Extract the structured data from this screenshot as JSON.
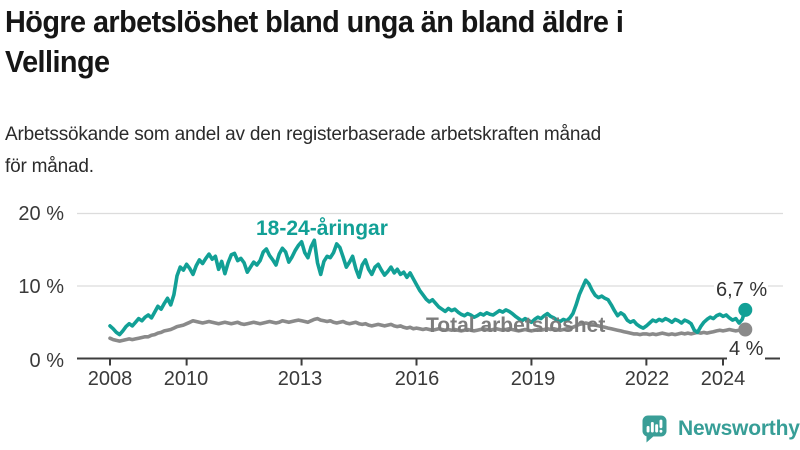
{
  "header": {
    "title_lines": [
      "Högre arbetslöshet bland unga än bland äldre i",
      "Vellinge"
    ],
    "subtitle_lines": [
      "Arbetssökande som andel av den registerbaserade arbetskraften månad",
      "för månad."
    ]
  },
  "chart_data": {
    "type": "line",
    "title": "Högre arbetslöshet bland unga än bland äldre i Vellinge",
    "subtitle": "Arbetssökande som andel av den registerbaserade arbetskraften månad för månad.",
    "unit": "%",
    "frequency": "monthly",
    "x_start": "2008-01",
    "x_end": "2024-08",
    "ylim": [
      0,
      20
    ],
    "grid": "horizontal",
    "y_gridlines": [
      10,
      20
    ],
    "y_tick_labels": [
      "20 %",
      "10 %",
      "0 %"
    ],
    "x_ticks": [
      2008,
      2010,
      2013,
      2016,
      2019,
      2022,
      2024
    ],
    "x_tick_labels": [
      "2008",
      "2010",
      "2013",
      "2016",
      "2019",
      "2022",
      "2024"
    ],
    "legend_position": "inline-labels",
    "series": [
      {
        "name": "18-24-åringar",
        "color": "#12A096",
        "end_label": "6,7 %",
        "end_value": 6.7,
        "values": [
          4.5,
          4.1,
          3.6,
          3.3,
          3.8,
          4.4,
          4.8,
          4.5,
          5.0,
          5.5,
          5.2,
          5.7,
          6.0,
          5.6,
          6.4,
          7.2,
          6.8,
          7.6,
          8.3,
          7.4,
          8.8,
          11.4,
          12.6,
          12.2,
          13.0,
          12.4,
          11.6,
          12.8,
          13.6,
          13.1,
          13.8,
          14.4,
          13.7,
          14.1,
          12.3,
          13.4,
          11.7,
          13.2,
          14.3,
          14.5,
          13.5,
          13.8,
          13.2,
          11.9,
          12.6,
          13.3,
          12.9,
          13.5,
          14.7,
          15.1,
          14.2,
          13.6,
          12.9,
          14.4,
          15.2,
          14.7,
          13.3,
          14.0,
          14.9,
          15.6,
          16.1,
          14.6,
          13.9,
          15.4,
          16.3,
          13.2,
          11.6,
          13.4,
          14.1,
          13.9,
          14.6,
          15.8,
          15.3,
          14.0,
          12.6,
          13.3,
          14.1,
          12.4,
          11.2,
          12.9,
          13.6,
          12.3,
          11.6,
          12.6,
          13.0,
          12.2,
          11.5,
          12.0,
          12.6,
          11.8,
          12.3,
          11.6,
          11.9,
          11.2,
          11.8,
          11.0,
          10.2,
          9.4,
          8.8,
          8.2,
          7.8,
          8.1,
          7.6,
          7.1,
          6.8,
          6.5,
          6.9,
          6.6,
          6.8,
          6.4,
          6.1,
          5.9,
          6.2,
          6.0,
          5.7,
          5.9,
          6.2,
          6.0,
          6.3,
          6.1,
          6.0,
          6.3,
          6.6,
          6.4,
          6.7,
          6.5,
          6.2,
          5.8,
          5.5,
          5.2,
          5.5,
          5.3,
          5.0,
          5.4,
          5.7,
          5.5,
          5.9,
          6.2,
          5.8,
          5.6,
          5.3,
          5.1,
          5.4,
          5.2,
          5.6,
          6.2,
          7.4,
          8.8,
          9.8,
          10.8,
          10.3,
          9.4,
          8.7,
          8.4,
          8.6,
          8.3,
          8.1,
          7.4,
          6.6,
          5.9,
          6.3,
          6.0,
          5.3,
          5.0,
          5.2,
          4.7,
          4.4,
          4.2,
          4.5,
          4.9,
          5.3,
          5.1,
          5.4,
          5.2,
          5.5,
          5.3,
          5.0,
          5.4,
          5.2,
          4.9,
          5.3,
          5.1,
          4.8,
          3.9,
          3.6,
          4.4,
          5.0,
          5.4,
          5.7,
          5.5,
          5.9,
          6.1,
          5.8,
          6.0,
          5.6,
          5.3,
          5.5,
          4.9,
          5.4,
          6.7
        ]
      },
      {
        "name": "Total arbetslöshet",
        "color": "#8A8A8A",
        "end_label": "4 %",
        "end_value": 4.0,
        "values": [
          2.8,
          2.6,
          2.5,
          2.4,
          2.5,
          2.6,
          2.7,
          2.6,
          2.7,
          2.8,
          2.9,
          3.0,
          3.0,
          3.2,
          3.3,
          3.5,
          3.6,
          3.8,
          3.9,
          4.0,
          4.2,
          4.4,
          4.5,
          4.6,
          4.8,
          5.0,
          5.2,
          5.1,
          5.0,
          4.9,
          5.0,
          5.1,
          5.0,
          4.9,
          4.8,
          4.9,
          5.0,
          4.9,
          4.8,
          4.9,
          5.0,
          4.8,
          4.7,
          4.8,
          4.9,
          5.0,
          4.9,
          4.8,
          4.9,
          5.0,
          5.1,
          5.0,
          4.9,
          5.0,
          5.2,
          5.1,
          5.0,
          5.1,
          5.2,
          5.3,
          5.2,
          5.1,
          5.0,
          5.2,
          5.4,
          5.5,
          5.3,
          5.2,
          5.1,
          5.2,
          5.0,
          4.9,
          5.0,
          5.1,
          4.9,
          4.8,
          4.9,
          5.0,
          4.8,
          4.7,
          4.8,
          4.6,
          4.5,
          4.6,
          4.7,
          4.6,
          4.5,
          4.6,
          4.7,
          4.5,
          4.4,
          4.5,
          4.3,
          4.2,
          4.3,
          4.1,
          4.2,
          4.1,
          4.0,
          4.1,
          4.0,
          3.9,
          4.0,
          4.1,
          4.0,
          3.9,
          4.0,
          3.9,
          4.0,
          3.9,
          3.8,
          3.9,
          4.0,
          3.9,
          3.8,
          3.9,
          4.0,
          4.1,
          4.0,
          3.9,
          4.0,
          4.1,
          4.0,
          3.9,
          4.0,
          4.1,
          4.0,
          3.9,
          3.8,
          3.9,
          4.0,
          3.9,
          3.8,
          3.9,
          4.0,
          3.9,
          4.0,
          4.1,
          4.0,
          4.1,
          4.0,
          3.9,
          4.0,
          4.1,
          4.2,
          4.3,
          4.5,
          4.7,
          4.8,
          4.9,
          4.8,
          4.7,
          4.6,
          4.5,
          4.4,
          4.3,
          4.2,
          4.1,
          4.0,
          3.9,
          3.8,
          3.7,
          3.6,
          3.5,
          3.4,
          3.4,
          3.3,
          3.4,
          3.4,
          3.3,
          3.4,
          3.3,
          3.4,
          3.5,
          3.4,
          3.3,
          3.4,
          3.3,
          3.4,
          3.5,
          3.4,
          3.5,
          3.4,
          3.5,
          3.6,
          3.5,
          3.6,
          3.5,
          3.6,
          3.7,
          3.8,
          3.9,
          3.8,
          3.9,
          4.0,
          3.9,
          3.8,
          3.9,
          3.9,
          4.0
        ]
      }
    ]
  },
  "footer": {
    "brand": "Newsworthy"
  },
  "colors": {
    "accent_teal": "#12A096",
    "series_gray": "#8A8A8A",
    "axis_text": "#3A3A3A",
    "gridline": "#DCDCDC",
    "axis_line": "#3D3D3D",
    "logo_teal": "#3A9E97",
    "title_text": "#161616"
  }
}
